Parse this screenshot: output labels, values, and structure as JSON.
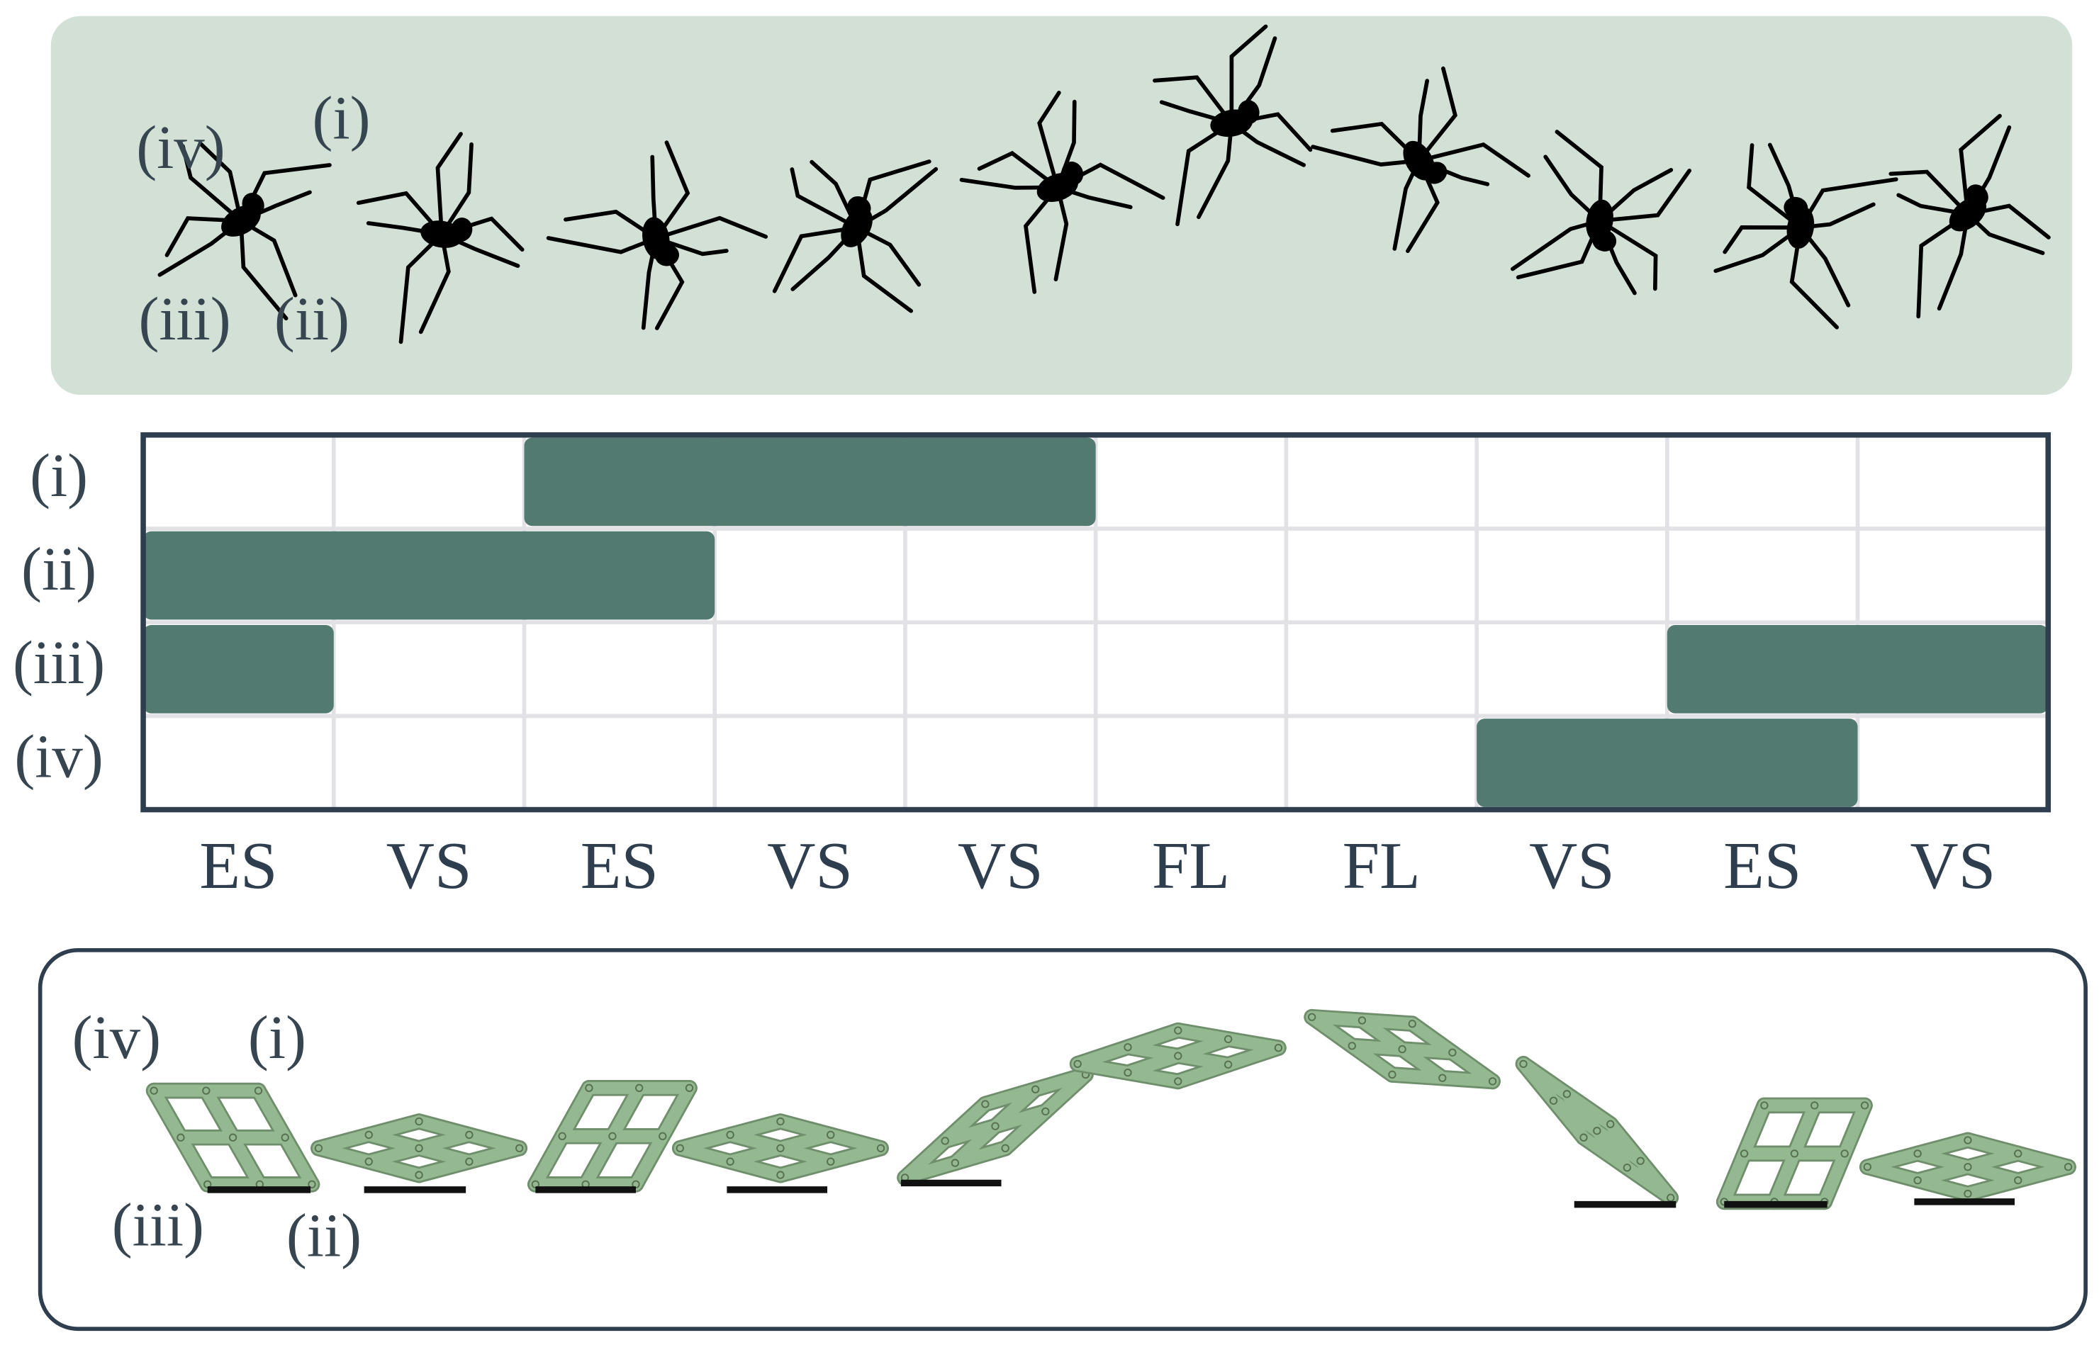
{
  "spider_panel": {
    "labels": [
      "(i)",
      "(ii)",
      "(iii)",
      "(iv)"
    ]
  },
  "gait_diagram": {
    "rows": [
      {
        "label": "(i)",
        "stance": [
          {
            "start": 2,
            "end": 5
          }
        ]
      },
      {
        "label": "(ii)",
        "stance": [
          {
            "start": 0,
            "end": 3
          }
        ]
      },
      {
        "label": "(iii)",
        "stance": [
          {
            "start": 0,
            "end": 1
          },
          {
            "start": 8,
            "end": 10
          }
        ]
      },
      {
        "label": "(iv)",
        "stance": [
          {
            "start": 7,
            "end": 9
          }
        ]
      }
    ],
    "phases": [
      "ES",
      "VS",
      "ES",
      "VS",
      "VS",
      "FL",
      "FL",
      "VS",
      "ES",
      "VS"
    ]
  },
  "linkage_panel": {
    "labels": [
      "(i)",
      "(ii)",
      "(iii)",
      "(iv)"
    ]
  }
}
